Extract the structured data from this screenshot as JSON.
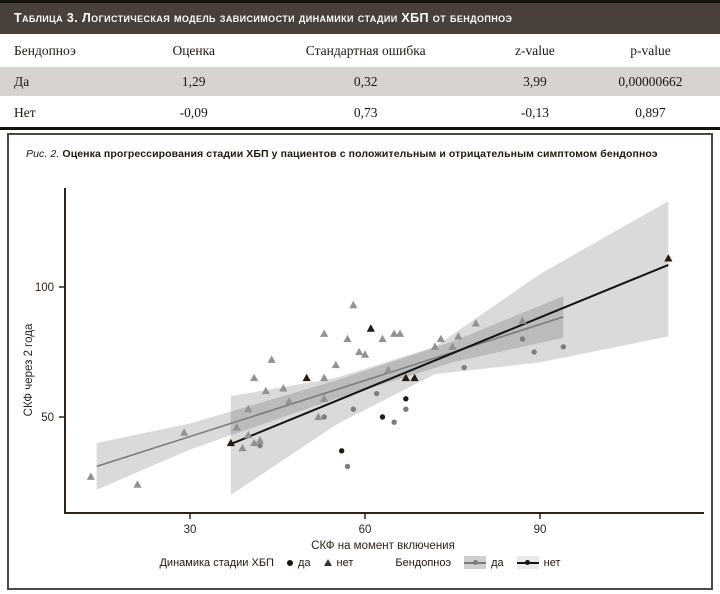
{
  "table": {
    "title": "Таблица 3. Логистическая модель зависимости динамики стадии ХБП от бендопноэ",
    "columns": [
      "Бендопноэ",
      "Оценка",
      "Стандартная ошибка",
      "z-value",
      "p-value"
    ],
    "rows": [
      {
        "label": "Да",
        "values": [
          "1,29",
          "0,32",
          "3,99",
          "0,00000662"
        ]
      },
      {
        "label": "Нет",
        "values": [
          "-0,09",
          "0,73",
          "-0,13",
          "0,897"
        ]
      }
    ]
  },
  "figure": {
    "caption_prefix": "Рис. 2.",
    "caption_text": "Оценка прогрессирования стадии ХБП у пациентов с положительным и отрицательным симптомом бендопноэ"
  },
  "chart_data": {
    "type": "scatter",
    "xlabel": "СКФ на момент включения",
    "ylabel": "СКФ через 2 года",
    "x_ticks": [
      30,
      60,
      90
    ],
    "y_ticks": [
      50,
      100
    ],
    "xlim": [
      8.5,
      118
    ],
    "ylim": [
      13,
      137
    ],
    "grid": false,
    "legend_position": "bottom",
    "axis_color": "#2e241b",
    "band_fill": "#1a1a1a",
    "band_opacity": 0.16,
    "series": [
      {
        "name": "Динамика да / Бендопноэ да",
        "marker": "circle",
        "color": "#7d7d7d",
        "points": [
          [
            42,
            39
          ],
          [
            53,
            50
          ],
          [
            57,
            31
          ],
          [
            58,
            53
          ],
          [
            62,
            59
          ],
          [
            65,
            48
          ],
          [
            67,
            53
          ],
          [
            77,
            69
          ],
          [
            87,
            80
          ],
          [
            89,
            75
          ],
          [
            94,
            77
          ]
        ]
      },
      {
        "name": "Динамика нет / Бендопноэ да",
        "marker": "triangle",
        "color": "#929292",
        "points": [
          [
            13,
            27
          ],
          [
            21,
            24
          ],
          [
            29,
            44
          ],
          [
            38,
            46
          ],
          [
            39,
            38
          ],
          [
            40,
            43
          ],
          [
            41,
            40
          ],
          [
            42,
            41
          ],
          [
            40,
            53
          ],
          [
            41,
            65
          ],
          [
            43,
            60
          ],
          [
            44,
            72
          ],
          [
            46,
            61
          ],
          [
            47,
            56
          ],
          [
            52,
            50
          ],
          [
            53,
            57
          ],
          [
            53,
            65
          ],
          [
            53,
            82
          ],
          [
            55,
            70
          ],
          [
            57,
            80
          ],
          [
            58,
            93
          ],
          [
            59,
            75
          ],
          [
            60,
            74
          ],
          [
            63,
            80
          ],
          [
            64,
            68
          ],
          [
            65,
            82
          ],
          [
            66,
            82
          ],
          [
            72,
            77
          ],
          [
            73,
            80
          ],
          [
            75,
            77
          ],
          [
            76,
            81
          ],
          [
            79,
            86
          ],
          [
            87,
            87
          ]
        ]
      },
      {
        "name": "Динамика да / Бендопноэ нет",
        "marker": "circle",
        "color": "#241a12",
        "points": [
          [
            56,
            37
          ],
          [
            63,
            50
          ],
          [
            67,
            57
          ]
        ]
      },
      {
        "name": "Динамика нет / Бендопноэ нет",
        "marker": "triangle",
        "color": "#241a12",
        "points": [
          [
            37,
            40
          ],
          [
            50,
            65
          ],
          [
            61,
            84
          ],
          [
            67,
            65
          ],
          [
            68.5,
            65
          ],
          [
            112,
            111
          ]
        ]
      }
    ],
    "regression": [
      {
        "name": "Бендопноэ да",
        "color": "#7c7c7c",
        "width": 1.6,
        "line": [
          [
            14,
            31
          ],
          [
            94,
            88.5
          ]
        ],
        "band": [
          [
            14,
            22,
            40
          ],
          [
            30,
            37.5,
            47.5
          ],
          [
            55,
            57,
            64
          ],
          [
            75,
            71,
            79
          ],
          [
            94,
            80.5,
            96.5
          ]
        ]
      },
      {
        "name": "Бендопноэ нет",
        "color": "#141414",
        "width": 2,
        "line": [
          [
            37,
            39.6
          ],
          [
            112,
            108.5
          ]
        ],
        "band": [
          [
            37,
            20,
            58
          ],
          [
            55,
            47,
            65
          ],
          [
            72,
            66.5,
            77
          ],
          [
            90,
            71,
            105
          ],
          [
            112,
            81,
            133
          ]
        ]
      }
    ],
    "legend": {
      "group1_label": "Динамика стадии ХБП",
      "group1_items": [
        {
          "marker": "circle",
          "label": "да"
        },
        {
          "marker": "triangle",
          "label": "нет"
        }
      ],
      "group2_label": "Бендопноэ",
      "group2_items": [
        {
          "swatch_color": "#7c7c7c",
          "band_color": "#cfcfcf",
          "label": "да"
        },
        {
          "swatch_color": "#151515",
          "band_color": "#e9e9e9",
          "label": "нет"
        }
      ]
    }
  }
}
